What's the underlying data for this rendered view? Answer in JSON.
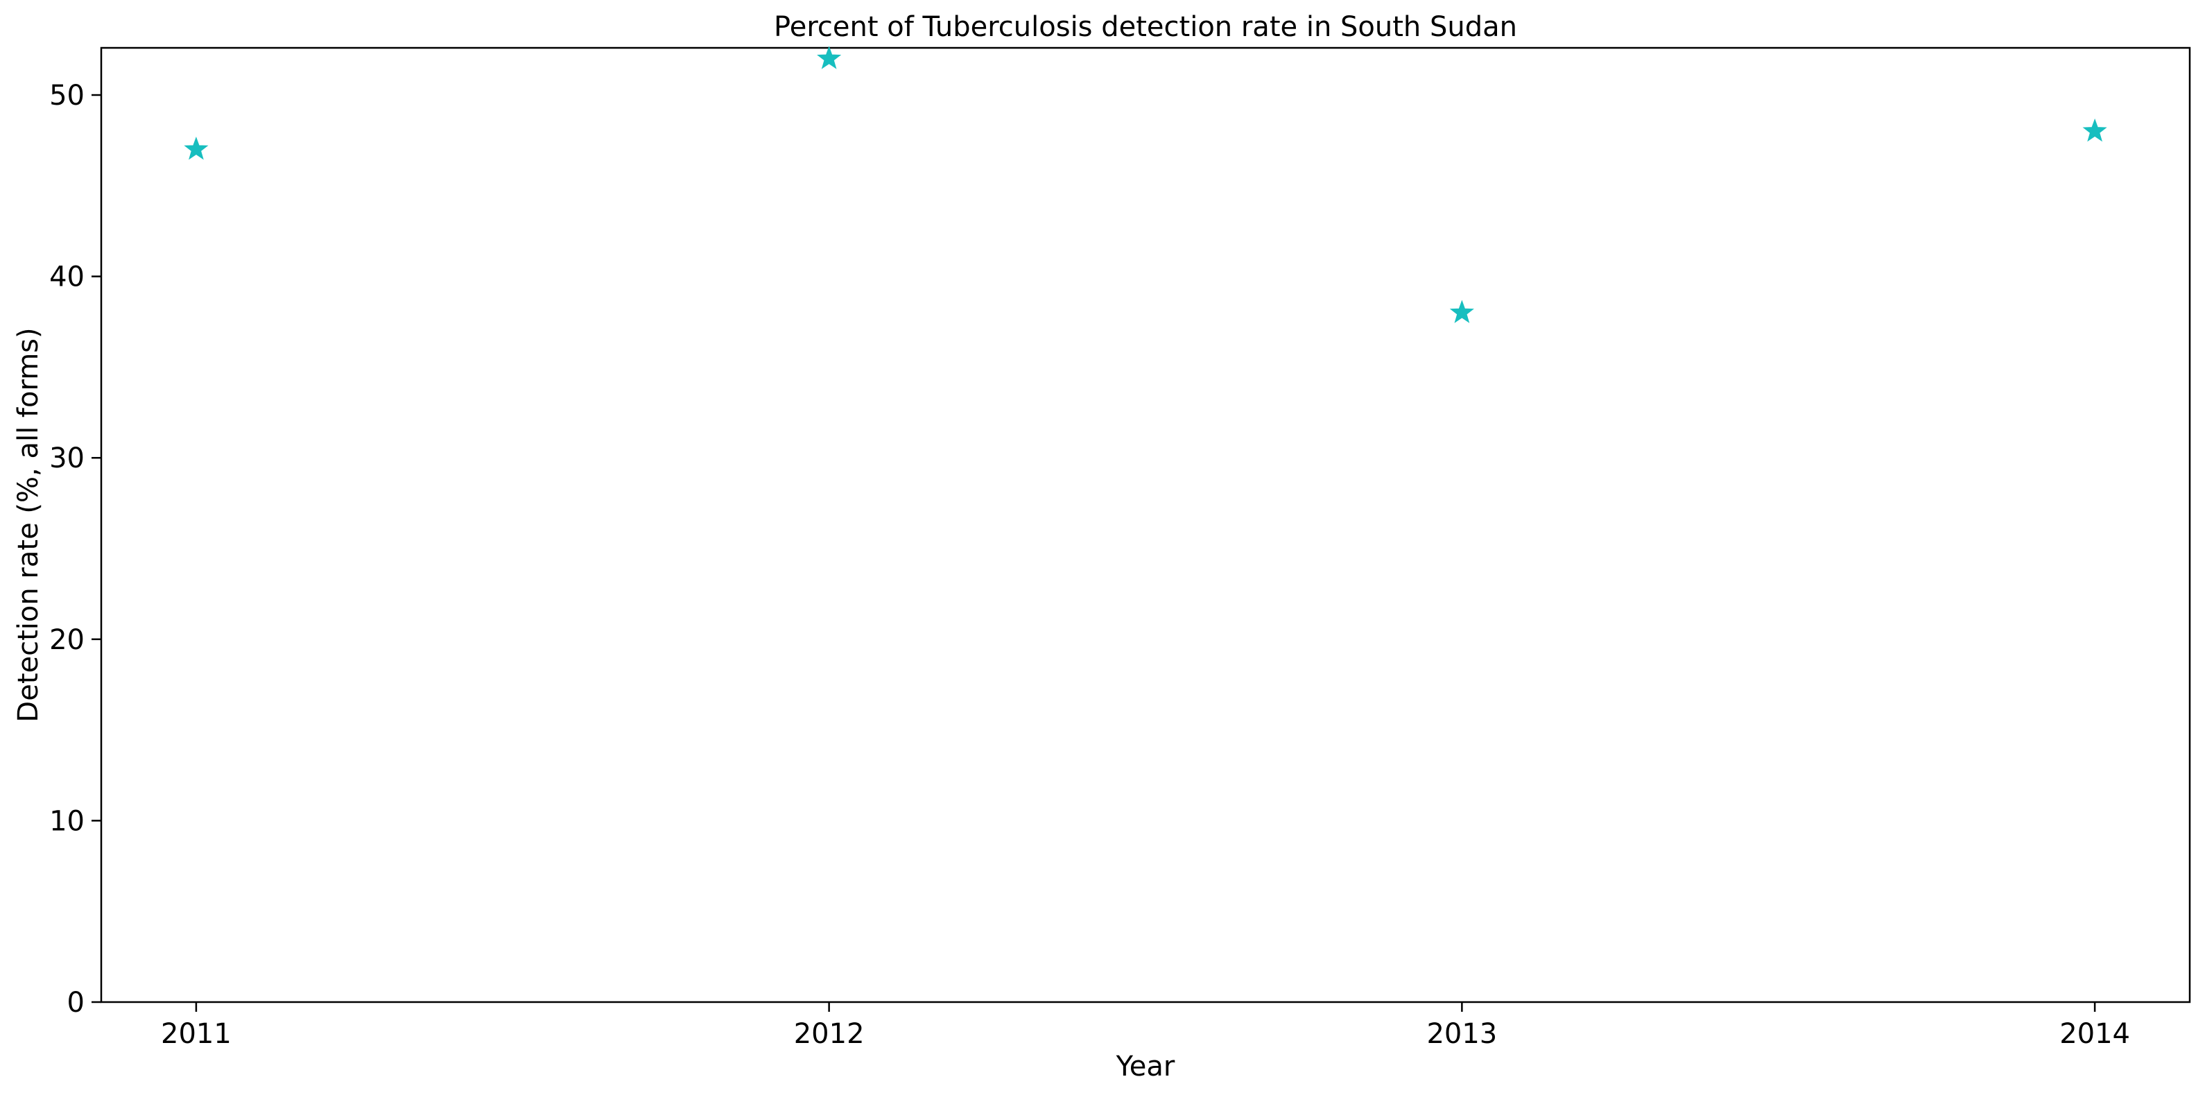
{
  "chart_data": {
    "type": "scatter",
    "title": "Percent of Tuberculosis detection rate in South Sudan",
    "xlabel": "Year",
    "ylabel": "Detection rate (%, all forms)",
    "x": [
      "2011",
      "2012",
      "2013",
      "2014"
    ],
    "series": [
      {
        "values": [
          47,
          52,
          38,
          48
        ],
        "color": "#17bebf",
        "marker": "star"
      }
    ],
    "yticks": [
      0,
      10,
      20,
      30,
      40,
      50
    ],
    "ylim": [
      0,
      52.6
    ],
    "xlim": [
      2010.85,
      2014.15
    ],
    "grid": false,
    "legend": "none"
  }
}
